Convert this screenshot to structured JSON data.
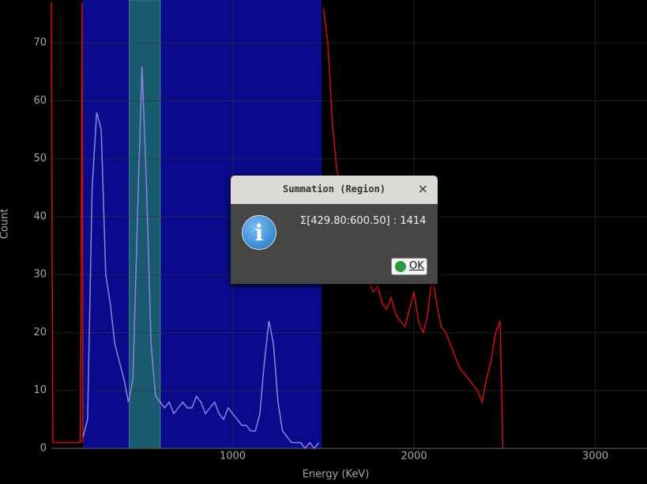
{
  "chart_data": {
    "type": "line",
    "xlabel": "Energy (KeV)",
    "ylabel": "Count",
    "xlim": [
      0,
      3285
    ],
    "ylim": [
      0,
      77.4
    ],
    "xticks": [
      1000,
      2000,
      3000
    ],
    "yticks": [
      0,
      10,
      20,
      30,
      40,
      50,
      60,
      70
    ],
    "grid": true,
    "regions": [
      {
        "start": 174,
        "end": 1490,
        "color": "#0a0a8c"
      },
      {
        "start": 429.8,
        "end": 600.5,
        "color": "#1a5a6e"
      }
    ],
    "series": [
      {
        "color": "#d01010",
        "x": [
          0,
          8,
          12,
          160,
          170,
          174
        ],
        "values": [
          77,
          1,
          1,
          1,
          77,
          1
        ]
      },
      {
        "color": "#8c84e0",
        "x": [
          175,
          200,
          225,
          250,
          275,
          300,
          325,
          350,
          375,
          400,
          425,
          450,
          475,
          500,
          525,
          550,
          575,
          600,
          625,
          650,
          675,
          700,
          725,
          750,
          775,
          800,
          825,
          850,
          875,
          900,
          925,
          950,
          975,
          1000,
          1025,
          1050,
          1075,
          1100,
          1125,
          1150,
          1175,
          1200,
          1225,
          1250,
          1275,
          1300,
          1325,
          1350,
          1375,
          1400,
          1425,
          1450,
          1475
        ],
        "values": [
          2,
          5,
          45,
          58,
          55,
          30,
          25,
          18,
          15,
          12,
          8,
          12,
          40,
          66,
          45,
          18,
          9,
          8,
          7,
          8,
          6,
          7,
          8,
          7,
          7,
          9,
          8,
          6,
          7,
          8,
          6,
          5,
          7,
          6,
          5,
          4,
          4,
          3,
          3,
          6,
          15,
          22,
          18,
          8,
          3,
          2,
          1,
          1,
          1,
          0,
          1,
          0,
          1
        ]
      },
      {
        "color": "#d01010",
        "x": [
          1500,
          1525,
          1550,
          1575,
          1600,
          1625,
          1650,
          1675,
          1700,
          1725,
          1750,
          1775,
          1800,
          1825,
          1850,
          1875,
          1900,
          1925,
          1950,
          1975,
          2000,
          2025,
          2050,
          2075,
          2100,
          2125,
          2150,
          2175,
          2200,
          2225,
          2250,
          2275,
          2300,
          2325,
          2350,
          2375,
          2400,
          2425,
          2450,
          2475,
          2490
        ],
        "values": [
          76,
          70,
          56,
          48,
          45,
          42,
          40,
          37,
          35,
          31,
          29,
          27,
          28,
          25,
          24,
          26,
          23,
          22,
          21,
          24,
          27,
          22,
          20,
          23,
          30,
          25,
          21,
          20,
          18,
          16,
          14,
          13,
          12,
          11,
          10,
          8,
          12,
          15,
          20,
          22,
          0
        ]
      }
    ]
  },
  "dialog": {
    "title": "Summation (Region)",
    "close": "×",
    "message": "Σ[429.80:600.50] : 1414",
    "button": "OK"
  }
}
